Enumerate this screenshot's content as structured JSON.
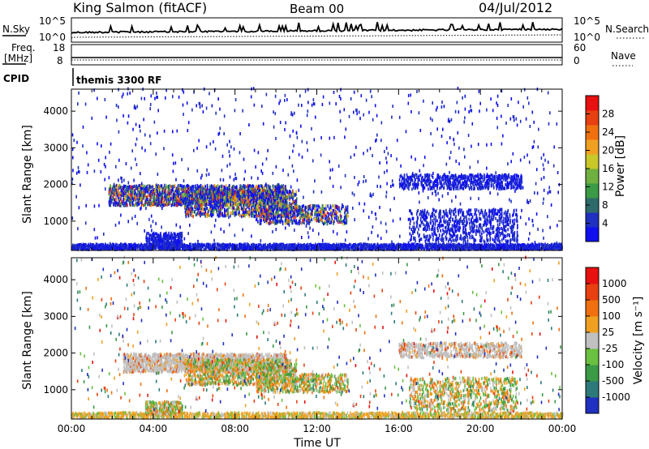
{
  "header": {
    "station": "King Salmon (fitACF)",
    "beam": "Beam 00",
    "date": "04/Jul/2012"
  },
  "noise_panel": {
    "left_label": "N.Sky",
    "left_top_tick": "10^5",
    "left_bottom_tick": "10^0",
    "right_label": "N.Search",
    "right_top_tick": "10^5",
    "right_bottom_tick": "10^0"
  },
  "freq_panel": {
    "left_label_line1": "Freq.",
    "left_label_line2": "[MHz]",
    "left_top_tick": "18",
    "left_bottom_tick": "8",
    "right_label": "Nave",
    "right_top_tick": "60",
    "right_bottom_tick": "0"
  },
  "cpid": {
    "label": "CPID",
    "value": "themis 3300 RF"
  },
  "chart_data": [
    {
      "type": "heatmap",
      "name": "power",
      "ylabel": "Slant Range [km]",
      "ylim": [
        200,
        4600
      ],
      "yticks": [
        "1000",
        "2000",
        "3000",
        "4000"
      ],
      "ytick_values": [
        1000,
        2000,
        3000,
        4000
      ],
      "xlim": [
        0,
        24
      ],
      "colorbar_label": "Power [dB]",
      "colorbar_ticks": [
        "4",
        "8",
        "12",
        "16",
        "20",
        "24",
        "28"
      ],
      "colorbar_colors": [
        "#1010ee",
        "#2030c0",
        "#2e6a6a",
        "#3a9a46",
        "#70b040",
        "#c8c828",
        "#f0a020",
        "#f07010",
        "#e84010",
        "#e81010"
      ],
      "scatter_regions": [
        {
          "t0": 0.0,
          "t1": 24.0,
          "r0": 200,
          "r1": 350,
          "density": 0.85
        },
        {
          "t0": 1.8,
          "t1": 10.5,
          "r0": 1400,
          "r1": 1950,
          "density": 0.55
        },
        {
          "t0": 5.5,
          "t1": 11.0,
          "r0": 1100,
          "r1": 1800,
          "density": 0.35
        },
        {
          "t0": 9.0,
          "t1": 13.5,
          "r0": 900,
          "r1": 1400,
          "density": 0.35
        },
        {
          "t0": 3.6,
          "t1": 5.4,
          "r0": 300,
          "r1": 650,
          "density": 0.5
        },
        {
          "t0": 16.0,
          "t1": 22.0,
          "r0": 1850,
          "r1": 2250,
          "density": 0.35
        },
        {
          "t0": 16.5,
          "t1": 21.8,
          "r0": 400,
          "r1": 1300,
          "density": 0.22
        },
        {
          "t0": 0.0,
          "t1": 24.0,
          "r0": 350,
          "r1": 4600,
          "density": 0.012
        }
      ]
    },
    {
      "type": "heatmap",
      "name": "velocity",
      "ylabel": "Slant Range [km]",
      "ylim": [
        200,
        4600
      ],
      "yticks": [
        "1000",
        "2000",
        "3000",
        "4000"
      ],
      "ytick_values": [
        1000,
        2000,
        3000,
        4000
      ],
      "xlim": [
        0,
        24
      ],
      "xticks": [
        "00:00",
        "04:00",
        "08:00",
        "12:00",
        "16:00",
        "20:00",
        "00:00"
      ],
      "xtick_values": [
        0,
        4,
        8,
        12,
        16,
        20,
        24
      ],
      "xlabel": "Time UT",
      "colorbar_label": "Velocity [m s⁻¹]",
      "colorbar_ticks": [
        "1000",
        "500",
        "100",
        "25",
        "-25",
        "-100",
        "-500",
        "-1000"
      ],
      "colorbar_colors": [
        "#2030c0",
        "#2e7a7a",
        "#3a9a46",
        "#6ac040",
        "#c0c0c0",
        "#f0a020",
        "#f07010",
        "#e84010",
        "#e81010"
      ],
      "scatter_regions": [
        {
          "t0": 0.0,
          "t1": 24.0,
          "r0": 200,
          "r1": 350,
          "density": 0.6
        },
        {
          "t0": 2.5,
          "t1": 10.5,
          "r0": 1450,
          "r1": 1950,
          "density": 0.6
        },
        {
          "t0": 5.5,
          "t1": 11.0,
          "r0": 1100,
          "r1": 1800,
          "density": 0.35
        },
        {
          "t0": 9.0,
          "t1": 13.5,
          "r0": 900,
          "r1": 1400,
          "density": 0.35
        },
        {
          "t0": 3.6,
          "t1": 5.4,
          "r0": 300,
          "r1": 650,
          "density": 0.5
        },
        {
          "t0": 16.0,
          "t1": 22.0,
          "r0": 1850,
          "r1": 2250,
          "density": 0.35
        },
        {
          "t0": 16.5,
          "t1": 21.8,
          "r0": 400,
          "r1": 1300,
          "density": 0.22
        },
        {
          "t0": 0.0,
          "t1": 24.0,
          "r0": 350,
          "r1": 4600,
          "density": 0.012
        }
      ]
    }
  ]
}
